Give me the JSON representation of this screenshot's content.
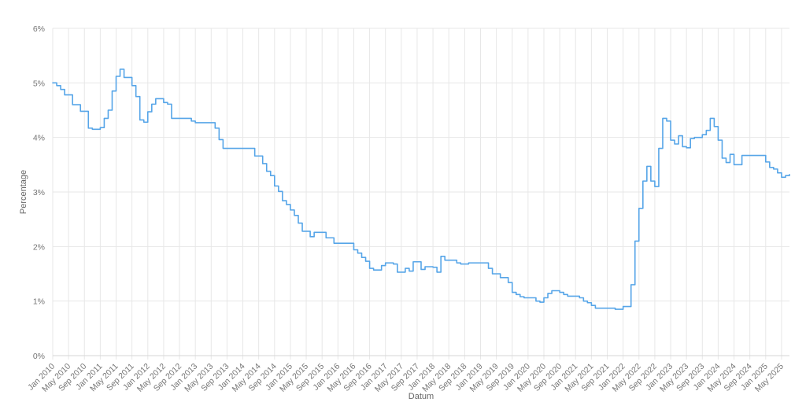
{
  "chart_data": {
    "type": "line",
    "line_shape": "step-after",
    "title": "",
    "xlabel": "Datum",
    "ylabel": "Percentage",
    "x_unit": "month",
    "x_start": "Jan 2010",
    "x_end": "Jul 2025",
    "x_tick_interval_months": 4,
    "x_tick_labels": [
      "Jan 2010",
      "May 2010",
      "Sep 2010",
      "Jan 2011",
      "May 2011",
      "Sep 2011",
      "Jan 2012",
      "May 2012",
      "Sep 2012",
      "Jan 2013",
      "May 2013",
      "Sep 2013",
      "Jan 2014",
      "May 2014",
      "Sep 2014",
      "Jan 2015",
      "May 2015",
      "Sep 2015",
      "Jan 2016",
      "May 2016",
      "Sep 2016",
      "Jan 2017",
      "May 2017",
      "Sep 2017",
      "Jan 2018",
      "May 2018",
      "Sep 2018",
      "Jan 2019",
      "May 2019",
      "Sep 2019",
      "Jan 2020",
      "May 2020",
      "Sep 2020",
      "Jan 2021",
      "May 2021",
      "Sep 2021",
      "Jan 2022",
      "May 2022",
      "Sep 2022",
      "Jan 2023",
      "May 2023",
      "Sep 2023",
      "Jan 2024",
      "May 2024",
      "Sep 2024",
      "Jan 2025",
      "May 2025"
    ],
    "y_tick_labels": [
      "0%",
      "1%",
      "2%",
      "3%",
      "4%",
      "5%",
      "6%"
    ],
    "ylim": [
      0,
      6
    ],
    "grid": true,
    "legend_position": "none",
    "series": [
      {
        "name": "Percentage",
        "color": "#56a5e8",
        "values": [
          5.0,
          4.95,
          4.88,
          4.78,
          4.78,
          4.6,
          4.6,
          4.48,
          4.48,
          4.17,
          4.15,
          4.15,
          4.18,
          4.35,
          4.5,
          4.85,
          5.12,
          5.25,
          5.1,
          5.1,
          4.95,
          4.75,
          4.32,
          4.28,
          4.47,
          4.61,
          4.71,
          4.71,
          4.64,
          4.61,
          4.35,
          4.35,
          4.35,
          4.35,
          4.35,
          4.3,
          4.27,
          4.27,
          4.27,
          4.27,
          4.27,
          4.17,
          3.96,
          3.8,
          3.8,
          3.8,
          3.8,
          3.8,
          3.8,
          3.8,
          3.8,
          3.66,
          3.66,
          3.52,
          3.38,
          3.3,
          3.11,
          3.01,
          2.84,
          2.77,
          2.67,
          2.57,
          2.43,
          2.28,
          2.28,
          2.18,
          2.26,
          2.26,
          2.26,
          2.16,
          2.16,
          2.06,
          2.06,
          2.06,
          2.06,
          2.06,
          1.94,
          1.88,
          1.8,
          1.73,
          1.6,
          1.57,
          1.57,
          1.65,
          1.7,
          1.7,
          1.68,
          1.53,
          1.53,
          1.6,
          1.55,
          1.72,
          1.72,
          1.58,
          1.63,
          1.63,
          1.62,
          1.53,
          1.82,
          1.75,
          1.75,
          1.75,
          1.7,
          1.68,
          1.68,
          1.7,
          1.7,
          1.7,
          1.7,
          1.7,
          1.6,
          1.5,
          1.5,
          1.43,
          1.43,
          1.34,
          1.16,
          1.12,
          1.08,
          1.06,
          1.06,
          1.06,
          1.0,
          0.98,
          1.06,
          1.14,
          1.19,
          1.19,
          1.16,
          1.12,
          1.09,
          1.09,
          1.09,
          1.06,
          1.0,
          0.97,
          0.92,
          0.87,
          0.87,
          0.87,
          0.87,
          0.87,
          0.85,
          0.85,
          0.9,
          0.9,
          1.3,
          2.1,
          2.7,
          3.2,
          3.47,
          3.2,
          3.1,
          3.8,
          4.35,
          4.3,
          3.95,
          3.88,
          4.03,
          3.83,
          3.81,
          3.98,
          4.0,
          4.0,
          4.05,
          4.13,
          4.35,
          4.2,
          3.95,
          3.62,
          3.54,
          3.69,
          3.5,
          3.5,
          3.67,
          3.67,
          3.67,
          3.67,
          3.67,
          3.67,
          3.55,
          3.45,
          3.42,
          3.35,
          3.27,
          3.3,
          3.32
        ]
      }
    ]
  },
  "styles": {
    "grid_color": "#e7e7e7",
    "axis_line_color": "#d6d6d6",
    "tick_text_color": "#757575",
    "axis_title_color": "#666666",
    "background": "#ffffff"
  }
}
